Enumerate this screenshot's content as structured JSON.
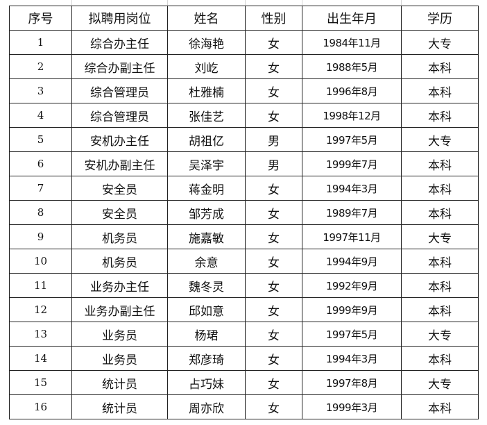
{
  "table": {
    "headers": [
      "序号",
      "拟聘用岗位",
      "姓名",
      "性别",
      "出生年月",
      "学历"
    ],
    "rows": [
      [
        "1",
        "综合办主任",
        "徐海艳",
        "女",
        "1984年11月",
        "大专"
      ],
      [
        "2",
        "综合办副主任",
        "刘屹",
        "女",
        "1988年5月",
        "本科"
      ],
      [
        "3",
        "综合管理员",
        "杜雅楠",
        "女",
        "1996年8月",
        "本科"
      ],
      [
        "4",
        "综合管理员",
        "张佳艺",
        "女",
        "1998年12月",
        "本科"
      ],
      [
        "5",
        "安机办主任",
        "胡祖亿",
        "男",
        "1997年5月",
        "大专"
      ],
      [
        "6",
        "安机办副主任",
        "吴泽宇",
        "男",
        "1999年7月",
        "本科"
      ],
      [
        "7",
        "安全员",
        "蒋金明",
        "女",
        "1994年3月",
        "本科"
      ],
      [
        "8",
        "安全员",
        "邹芳成",
        "女",
        "1989年7月",
        "本科"
      ],
      [
        "9",
        "机务员",
        "施嘉敏",
        "女",
        "1997年11月",
        "大专"
      ],
      [
        "10",
        "机务员",
        "余意",
        "女",
        "1994年9月",
        "本科"
      ],
      [
        "11",
        "业务办主任",
        "魏冬灵",
        "女",
        "1992年9月",
        "本科"
      ],
      [
        "12",
        "业务办副主任",
        "邱如意",
        "女",
        "1999年9月",
        "本科"
      ],
      [
        "13",
        "业务员",
        "杨珺",
        "女",
        "1997年5月",
        "大专"
      ],
      [
        "14",
        "业务员",
        "郑彦琦",
        "女",
        "1994年3月",
        "本科"
      ],
      [
        "15",
        "统计员",
        "占巧妹",
        "女",
        "1997年8月",
        "大专"
      ],
      [
        "16",
        "统计员",
        "周亦欣",
        "女",
        "1999年3月",
        "本科"
      ]
    ]
  }
}
